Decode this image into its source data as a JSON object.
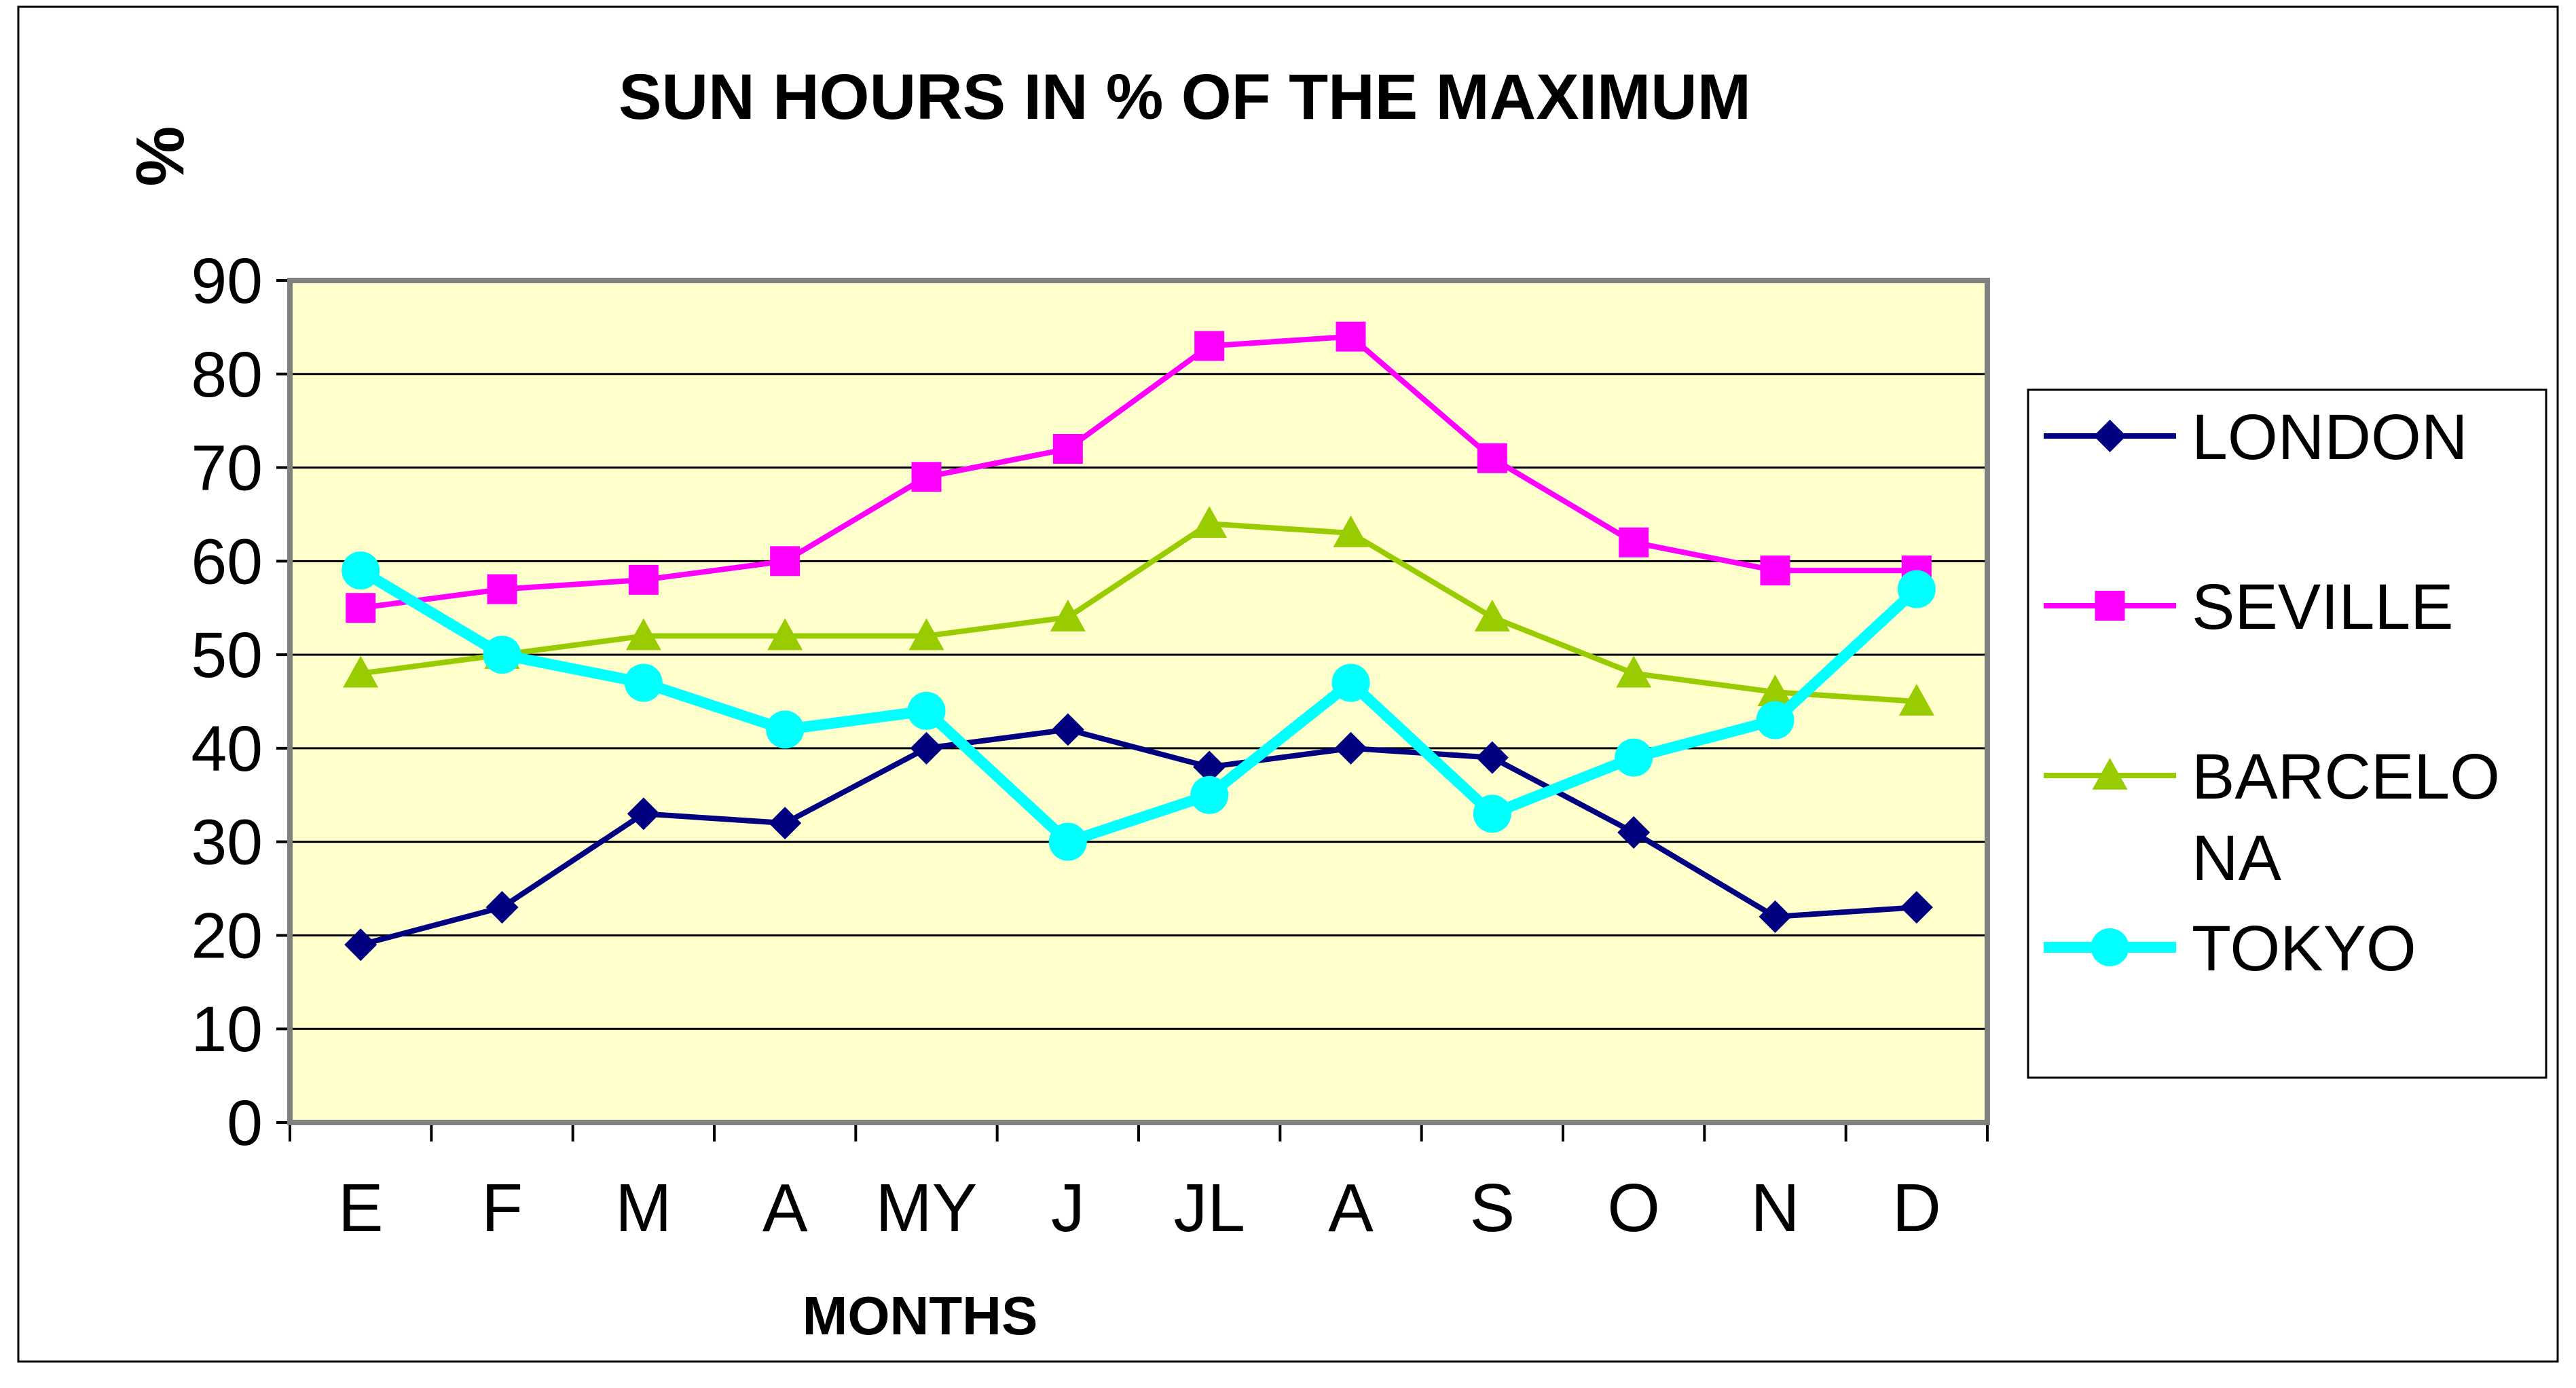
{
  "chart_data": {
    "type": "line",
    "title": "SUN HOURS IN % OF THE MAXIMUM",
    "xlabel": "MONTHS",
    "ylabel": "%",
    "categories": [
      "E",
      "F",
      "M",
      "A",
      "MY",
      "J",
      "JL",
      "A",
      "S",
      "O",
      "N",
      "D"
    ],
    "ylim": [
      0,
      90
    ],
    "yticks": [
      0,
      10,
      20,
      30,
      40,
      50,
      60,
      70,
      80,
      90
    ],
    "grid": true,
    "legend_position": "right",
    "plot_background": "#ffffcc",
    "series": [
      {
        "name": "LONDON",
        "color": "#000080",
        "marker": "diamond",
        "values": [
          19,
          23,
          33,
          32,
          40,
          42,
          38,
          40,
          39,
          31,
          22,
          23
        ]
      },
      {
        "name": "SEVILLE",
        "color": "#ff00ff",
        "marker": "square",
        "values": [
          55,
          57,
          58,
          60,
          69,
          72,
          83,
          84,
          71,
          62,
          59,
          59
        ]
      },
      {
        "name": "BARCELONA",
        "legend_label_lines": [
          "BARCELO",
          "NA"
        ],
        "color": "#99cc00",
        "marker": "triangle",
        "values": [
          48,
          50,
          52,
          52,
          52,
          54,
          64,
          63,
          54,
          48,
          46,
          45
        ]
      },
      {
        "name": "TOKYO",
        "color": "#00ffff",
        "marker": "circle",
        "values": [
          59,
          50,
          47,
          42,
          44,
          30,
          35,
          47,
          33,
          39,
          43,
          57
        ]
      }
    ]
  }
}
